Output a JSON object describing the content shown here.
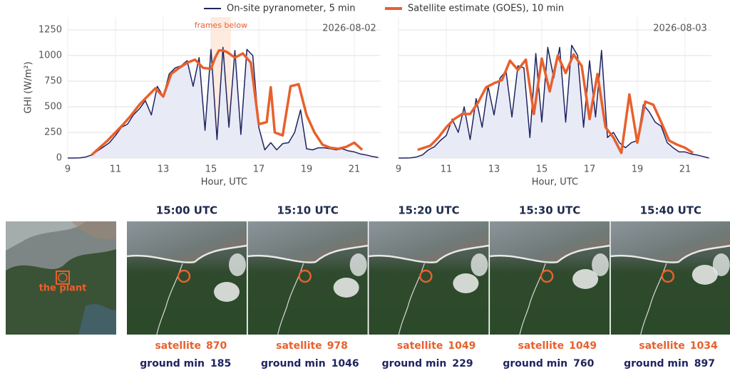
{
  "chart_data": [
    {
      "type": "line",
      "annotation": "2026-08-02",
      "shade_label": "frames below",
      "shade": [
        15,
        15.83
      ],
      "xlabel": "Hour, UTC",
      "ylabel": "GHI (W/m²)",
      "xlim": [
        9,
        22.1
      ],
      "xticks": [
        9,
        11,
        13,
        15,
        17,
        19,
        21
      ],
      "ylim": [
        0,
        1375
      ],
      "yticks": [
        0,
        250,
        500,
        750,
        1000,
        1250
      ],
      "grid": true,
      "series": [
        {
          "name": "On-site pyranometer, 5 min",
          "color": "#1f2460",
          "fill_color": "#e8ebf6",
          "x": [
            9,
            9.25,
            9.5,
            9.75,
            10,
            10.25,
            10.5,
            10.75,
            11,
            11.25,
            11.5,
            11.75,
            12,
            12.25,
            12.5,
            12.75,
            13,
            13.25,
            13.5,
            13.75,
            14,
            14.25,
            14.5,
            14.75,
            15,
            15.25,
            15.5,
            15.75,
            16,
            16.25,
            16.5,
            16.75,
            17,
            17.25,
            17.5,
            17.75,
            18,
            18.25,
            18.5,
            18.75,
            19,
            19.25,
            19.5,
            19.75,
            20,
            20.25,
            20.5,
            20.75,
            21,
            21.25,
            21.5,
            21.75,
            22
          ],
          "values": [
            0,
            0,
            2,
            10,
            30,
            70,
            110,
            150,
            220,
            300,
            330,
            420,
            480,
            560,
            420,
            700,
            600,
            820,
            880,
            900,
            950,
            700,
            980,
            270,
            1060,
            180,
            1080,
            300,
            1050,
            230,
            1060,
            1000,
            300,
            80,
            150,
            80,
            140,
            150,
            250,
            470,
            90,
            80,
            100,
            100,
            90,
            80,
            90,
            70,
            60,
            40,
            30,
            15,
            5
          ]
        },
        {
          "name": "Satellite estimate (GOES), 10 min",
          "color": "#e8602c",
          "x": [
            10,
            10.33,
            10.67,
            11,
            11.33,
            11.67,
            12,
            12.33,
            12.67,
            13,
            13.33,
            13.67,
            14,
            14.33,
            14.67,
            15,
            15.17,
            15.33,
            15.5,
            15.67,
            16,
            16.33,
            16.67,
            17,
            17.33,
            17.5,
            17.67,
            18,
            18.33,
            18.67,
            19,
            19.33,
            19.67,
            20,
            20.33,
            20.67,
            21,
            21.33
          ],
          "values": [
            30,
            100,
            170,
            250,
            330,
            420,
            520,
            600,
            680,
            600,
            820,
            880,
            930,
            960,
            880,
            870,
            978,
            1049,
            1049,
            1034,
            980,
            1020,
            930,
            330,
            350,
            690,
            250,
            220,
            700,
            720,
            420,
            250,
            130,
            100,
            90,
            110,
            150,
            80
          ]
        }
      ]
    },
    {
      "type": "line",
      "annotation": "2026-08-03",
      "xlabel": "Hour, UTC",
      "xlim": [
        9,
        22.1
      ],
      "xticks": [
        9,
        11,
        13,
        15,
        17,
        19,
        21
      ],
      "series": [
        {
          "name": "On-site pyranometer, 5 min",
          "color": "#1f2460",
          "fill_color": "#e8ebf6",
          "x": [
            9,
            9.25,
            9.5,
            9.75,
            10,
            10.25,
            10.5,
            10.75,
            11,
            11.25,
            11.5,
            11.75,
            12,
            12.25,
            12.5,
            12.75,
            13,
            13.25,
            13.5,
            13.75,
            14,
            14.25,
            14.5,
            14.75,
            15,
            15.25,
            15.5,
            15.75,
            16,
            16.25,
            16.5,
            16.75,
            17,
            17.25,
            17.5,
            17.75,
            18,
            18.25,
            18.5,
            18.75,
            19,
            19.25,
            19.5,
            19.75,
            20,
            20.25,
            20.5,
            20.75,
            21,
            21.25,
            21.5,
            21.75,
            22
          ],
          "values": [
            0,
            0,
            2,
            10,
            30,
            80,
            110,
            170,
            220,
            380,
            250,
            500,
            180,
            580,
            300,
            700,
            420,
            780,
            850,
            400,
            900,
            880,
            200,
            1020,
            350,
            1080,
            780,
            1080,
            350,
            1100,
            1000,
            300,
            950,
            400,
            1050,
            200,
            250,
            150,
            100,
            150,
            170,
            520,
            450,
            350,
            310,
            150,
            100,
            60,
            60,
            40,
            30,
            15,
            0
          ]
        },
        {
          "name": "Satellite estimate (GOES), 10 min",
          "color": "#e8602c",
          "x": [
            9.8,
            10.33,
            10.67,
            11,
            11.33,
            11.67,
            12,
            12.33,
            12.67,
            13,
            13.33,
            13.67,
            14,
            14.33,
            14.67,
            15,
            15.33,
            15.67,
            16,
            16.33,
            16.67,
            17,
            17.33,
            17.67,
            18,
            18.33,
            18.67,
            19,
            19.33,
            19.67,
            20,
            20.33,
            20.67,
            21,
            21.33
          ],
          "values": [
            80,
            120,
            200,
            300,
            380,
            430,
            430,
            540,
            690,
            730,
            760,
            950,
            860,
            960,
            430,
            970,
            650,
            1000,
            830,
            1010,
            900,
            380,
            820,
            300,
            200,
            50,
            620,
            150,
            550,
            520,
            350,
            170,
            130,
            100,
            50
          ]
        }
      ]
    }
  ],
  "overview": {
    "label": "the plant"
  },
  "frames": {
    "satellite_label": "satellite",
    "ground_label": "ground min",
    "items": [
      {
        "time": "15:00 UTC",
        "satellite": 870,
        "ground_min": 185
      },
      {
        "time": "15:10 UTC",
        "satellite": 978,
        "ground_min": 1046
      },
      {
        "time": "15:20 UTC",
        "satellite": 1049,
        "ground_min": 229
      },
      {
        "time": "15:30 UTC",
        "satellite": 1049,
        "ground_min": 760
      },
      {
        "time": "15:40 UTC",
        "satellite": 1034,
        "ground_min": 897
      }
    ]
  }
}
